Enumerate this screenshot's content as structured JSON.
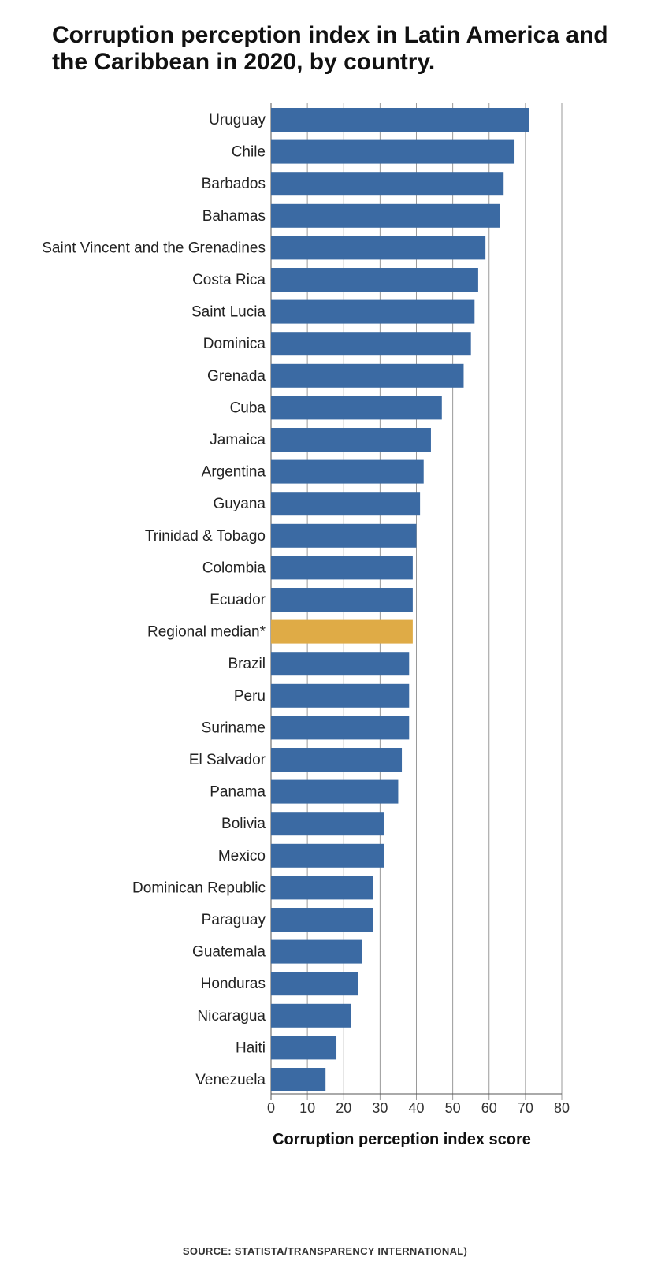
{
  "chart_data": {
    "type": "bar",
    "orientation": "horizontal",
    "title": "Corruption perception index in Latin America and the Caribbean in 2020, by country.",
    "xlabel": "Corruption perception index score",
    "ylabel": "",
    "xlim": [
      0,
      80
    ],
    "xticks": [
      "0",
      "10",
      "20",
      "30",
      "40",
      "50",
      "60",
      "70",
      "80"
    ],
    "grid": "vertical",
    "categories": [
      "Uruguay",
      "Chile",
      "Barbados",
      "Bahamas",
      "Saint Vincent and the Grenadines",
      "Costa Rica",
      "Saint Lucia",
      "Dominica",
      "Grenada",
      "Cuba",
      "Jamaica",
      "Argentina",
      "Guyana",
      "Trinidad & Tobago",
      "Colombia",
      "Ecuador",
      "Regional median*",
      "Brazil",
      "Peru",
      "Suriname",
      "El Salvador",
      "Panama",
      "Bolivia",
      "Mexico",
      "Dominican Republic",
      "Paraguay",
      "Guatemala",
      "Honduras",
      "Nicaragua",
      "Haiti",
      "Venezuela"
    ],
    "values": [
      71,
      67,
      64,
      63,
      59,
      57,
      56,
      55,
      53,
      47,
      44,
      42,
      41,
      40,
      39,
      39,
      39,
      38,
      38,
      38,
      36,
      35,
      31,
      31,
      28,
      28,
      25,
      24,
      22,
      18,
      15
    ],
    "highlight": "Regional median*",
    "colors": {
      "bar": "#3b6aa3",
      "highlight": "#dfab46",
      "grid": "#9a9a9a",
      "axis": "#555555"
    }
  },
  "source": "SOURCE: STATISTA/TRANSPARENCY INTERNATIONAL)"
}
